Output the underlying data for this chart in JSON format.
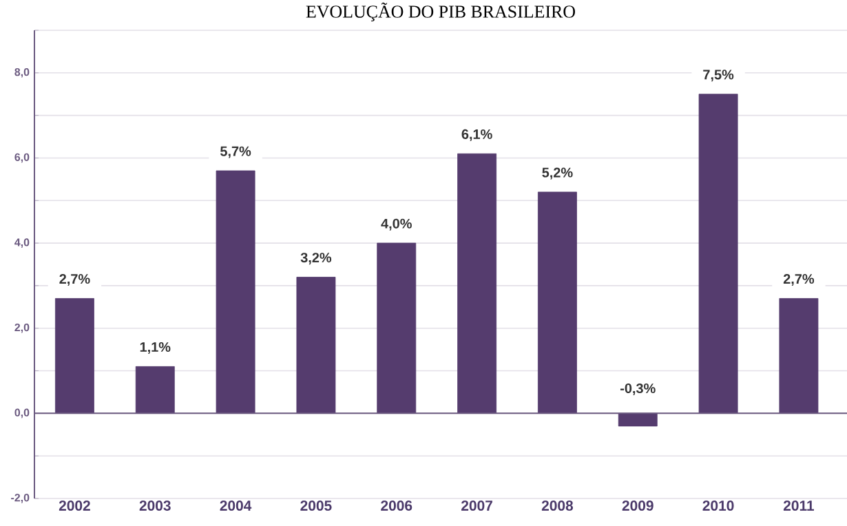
{
  "chart_data": {
    "type": "bar",
    "title": "EVOLUÇÃO DO PIB BRASILEIRO",
    "categories": [
      "2002",
      "2003",
      "2004",
      "2005",
      "2006",
      "2007",
      "2008",
      "2009",
      "2010",
      "2011"
    ],
    "values": [
      2.7,
      1.1,
      5.7,
      3.2,
      4.0,
      6.1,
      5.2,
      -0.3,
      7.5,
      2.7
    ],
    "value_labels": [
      "2,7%",
      "1,1%",
      "5,7%",
      "3,2%",
      "4,0%",
      "6,1%",
      "5,2%",
      "-0,3%",
      "7,5%",
      "2,7%"
    ],
    "color": "#553c6e",
    "ylim": [
      -2,
      9
    ],
    "yticks": [
      {
        "value": -2,
        "label": "-2,0"
      },
      {
        "value": -1,
        "label": null
      },
      {
        "value": 0,
        "label": "0,0"
      },
      {
        "value": 1,
        "label": null
      },
      {
        "value": 2,
        "label": "2,0"
      },
      {
        "value": 3,
        "label": null
      },
      {
        "value": 4,
        "label": "4,0"
      },
      {
        "value": 5,
        "label": null
      },
      {
        "value": 6,
        "label": "6,0"
      },
      {
        "value": 7,
        "label": null
      },
      {
        "value": 8,
        "label": "8,0"
      },
      {
        "value": 9,
        "label": null
      }
    ],
    "grid": "y"
  }
}
